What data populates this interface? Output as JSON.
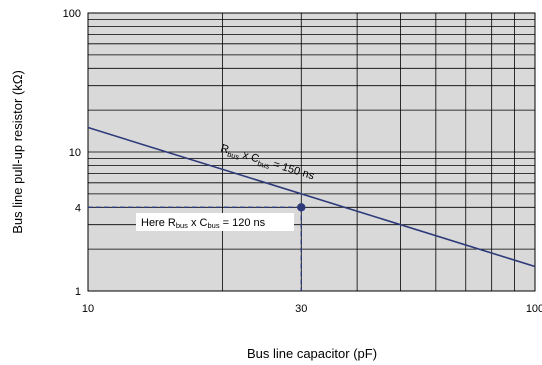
{
  "chart_data": {
    "type": "line",
    "xscale": "log",
    "yscale": "log",
    "xlim": [
      10,
      100
    ],
    "ylim": [
      1,
      100
    ],
    "xlabel": "Bus line capacitor (pF)",
    "ylabel": "Bus line pull-up resistor (kΩ)",
    "x_ticks": [
      "10",
      "30",
      "100"
    ],
    "y_ticks": [
      "1",
      "4",
      "10",
      "100"
    ],
    "grid": true,
    "background": "#d9d9d9",
    "series": [
      {
        "name": "Rbus x Cbus = 150 ns",
        "color": "#2e3a7a",
        "x": [
          10,
          100
        ],
        "y": [
          15,
          1.5
        ]
      }
    ],
    "annotations": [
      {
        "name": "Here Rbus x Cbus = 120 ns",
        "point": {
          "x": 30,
          "y": 4
        },
        "color": "#2e3a7a"
      }
    ],
    "label_parts": {
      "line": {
        "r": "R",
        "r_sub": "bus",
        "mid": " x C",
        "c_sub": "bus",
        "rest": " = 150 ns"
      },
      "note": {
        "pre": "Here R",
        "r_sub": "bus",
        "mid": " x C",
        "c_sub": "bus",
        "rest": " = 120 ns"
      }
    }
  }
}
